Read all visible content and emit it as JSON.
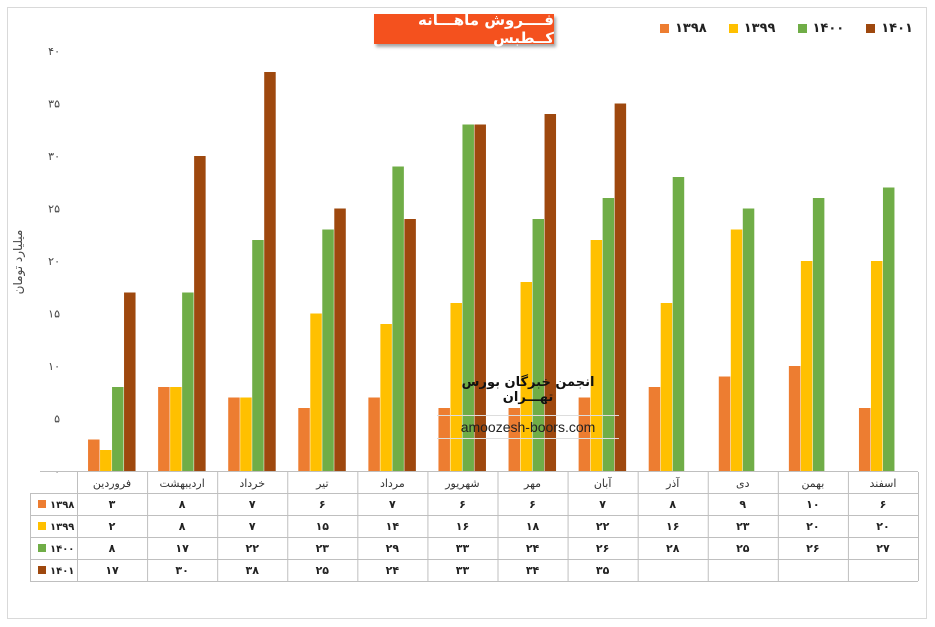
{
  "chart_data": {
    "type": "bar",
    "title": "فــــروش ماهـــانه کــطبس",
    "ylabel": "میلیارد تومان",
    "ylim": [
      0,
      40
    ],
    "yticks": [
      "۰",
      "۵",
      "۱۰",
      "۱۵",
      "۲۰",
      "۲۵",
      "۳۰",
      "۳۵",
      "۴۰"
    ],
    "legend_position": "top-right",
    "categories": [
      "فروردین",
      "اردیبهشت",
      "خرداد",
      "تیر",
      "مرداد",
      "شهریور",
      "مهر",
      "آبان",
      "آذر",
      "دی",
      "بهمن",
      "اسفند"
    ],
    "series": [
      {
        "name": "۱۳۹۸",
        "color": "#ed7d31",
        "values": [
          3,
          8,
          7,
          6,
          7,
          6,
          6,
          7,
          8,
          9,
          10,
          6
        ],
        "labels": [
          "۳",
          "۸",
          "۷",
          "۶",
          "۷",
          "۶",
          "۶",
          "۷",
          "۸",
          "۹",
          "۱۰",
          "۶"
        ]
      },
      {
        "name": "۱۳۹۹",
        "color": "#ffc000",
        "values": [
          2,
          8,
          7,
          15,
          14,
          16,
          18,
          22,
          16,
          23,
          20,
          20
        ],
        "labels": [
          "۲",
          "۸",
          "۷",
          "۱۵",
          "۱۴",
          "۱۶",
          "۱۸",
          "۲۲",
          "۱۶",
          "۲۳",
          "۲۰",
          "۲۰"
        ]
      },
      {
        "name": "۱۴۰۰",
        "color": "#70ad47",
        "values": [
          8,
          17,
          22,
          23,
          29,
          33,
          24,
          26,
          28,
          25,
          26,
          27
        ],
        "labels": [
          "۸",
          "۱۷",
          "۲۲",
          "۲۳",
          "۲۹",
          "۳۳",
          "۲۴",
          "۲۶",
          "۲۸",
          "۲۵",
          "۲۶",
          "۲۷"
        ]
      },
      {
        "name": "۱۴۰۱",
        "color": "#9e480e",
        "values": [
          17,
          30,
          38,
          25,
          24,
          33,
          34,
          35,
          null,
          null,
          null,
          null
        ],
        "labels": [
          "۱۷",
          "۳۰",
          "۳۸",
          "۲۵",
          "۲۴",
          "۳۳",
          "۳۴",
          "۳۵",
          "",
          "",
          "",
          ""
        ]
      }
    ]
  },
  "watermark": {
    "text_fa": "انجمن خبرگان بورس تهـــران",
    "text_en": "amoozesh-boors.com"
  }
}
